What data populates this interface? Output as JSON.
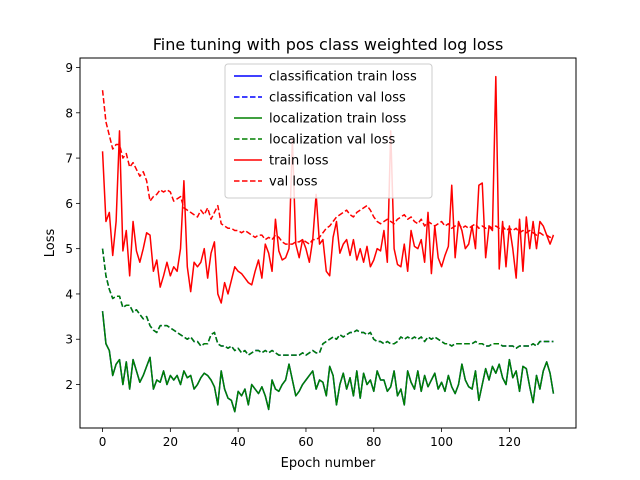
{
  "chart_data": {
    "type": "line",
    "title": "Fine tuning with pos class weighted log loss",
    "xlabel": "Epoch number",
    "ylabel": "Loss",
    "xlim": [
      -6.65,
      139.65
    ],
    "ylim": [
      1.04,
      9.21
    ],
    "xticks": [
      0,
      20,
      40,
      60,
      80,
      100,
      120
    ],
    "yticks": [
      2,
      3,
      4,
      5,
      6,
      7,
      8,
      9
    ],
    "grid": false,
    "legend_position": "upper-center",
    "x_start": 0,
    "series": [
      {
        "name": "classification train loss",
        "color": "#0000ff",
        "dash": "solid",
        "values": [
          3.62,
          2.9,
          2.75,
          2.2,
          2.45,
          2.55,
          2.0,
          2.5,
          1.9,
          2.55,
          2.3,
          2.05,
          2.2,
          2.4,
          2.6,
          1.9,
          2.1,
          2.05,
          2.3,
          2.0,
          2.2,
          2.1,
          2.2,
          2.0,
          2.3,
          2.15,
          2.2,
          1.9,
          2.0,
          2.15,
          2.25,
          2.2,
          2.1,
          1.95,
          1.55,
          2.3,
          1.9,
          1.7,
          1.65,
          1.4,
          1.85,
          1.75,
          1.9,
          1.55,
          2.0,
          1.9,
          1.8,
          1.95,
          1.75,
          1.45,
          2.1,
          1.9,
          1.85,
          2.0,
          2.1,
          2.45,
          2.1,
          1.75,
          1.85,
          2.0,
          2.1,
          2.2,
          2.3,
          1.9,
          2.1,
          2.05,
          1.75,
          2.4,
          2.2,
          1.55,
          2.0,
          2.25,
          1.9,
          2.15,
          1.75,
          2.3,
          1.7,
          2.25,
          2.0,
          2.1,
          1.85,
          2.3,
          2.1,
          2.1,
          1.85,
          1.95,
          2.3,
          1.75,
          1.9,
          1.55,
          2.3,
          2.05,
          1.9,
          2.3,
          1.85,
          2.2,
          1.95,
          2.1,
          2.25,
          1.9,
          2.05,
          1.85,
          2.2,
          1.95,
          1.8,
          2.0,
          2.45,
          2.1,
          1.95,
          1.9,
          2.3,
          1.65,
          2.0,
          2.35,
          2.1,
          2.4,
          2.25,
          2.45,
          2.15,
          2.0,
          2.55,
          2.15,
          2.3,
          1.85,
          2.4,
          2.35,
          1.95,
          1.6,
          2.2,
          1.9,
          2.3,
          2.5,
          2.25,
          1.8
        ]
      },
      {
        "name": "classification val loss",
        "color": "#0000ff",
        "dash": "dashed",
        "values": [
          5.0,
          4.4,
          4.1,
          3.9,
          3.95,
          3.95,
          3.7,
          3.75,
          3.75,
          3.6,
          3.65,
          3.55,
          3.45,
          3.5,
          3.3,
          3.2,
          3.15,
          3.3,
          3.3,
          3.3,
          3.25,
          3.2,
          3.15,
          3.1,
          3.05,
          3.0,
          3.05,
          2.95,
          2.95,
          2.85,
          2.9,
          2.9,
          3.1,
          3.15,
          2.9,
          2.85,
          2.85,
          2.8,
          2.85,
          2.75,
          2.8,
          2.7,
          2.75,
          2.65,
          2.7,
          2.75,
          2.75,
          2.7,
          2.75,
          2.7,
          2.75,
          2.7,
          2.65,
          2.65,
          2.65,
          2.65,
          2.65,
          2.65,
          2.65,
          2.7,
          2.65,
          2.7,
          2.75,
          2.7,
          2.7,
          2.9,
          2.95,
          3.0,
          3.05,
          3.0,
          3.1,
          3.05,
          3.1,
          3.15,
          3.15,
          3.2,
          3.15,
          3.15,
          3.1,
          3.15,
          3.0,
          2.95,
          2.95,
          2.9,
          2.95,
          2.9,
          2.9,
          2.95,
          3.05,
          3.0,
          3.05,
          3.0,
          3.05,
          3.0,
          3.05,
          2.95,
          3.05,
          3.0,
          3.05,
          3.0,
          2.95,
          2.9,
          2.9,
          2.85,
          2.9,
          2.9,
          2.9,
          2.9,
          2.9,
          2.9,
          2.95,
          2.9,
          2.9,
          2.85,
          2.85,
          2.9,
          2.9,
          2.9,
          2.85,
          2.85,
          2.85,
          2.85,
          2.8,
          2.85,
          2.85,
          2.85,
          2.85,
          2.9,
          2.85,
          2.95,
          2.95,
          2.95,
          2.95,
          2.95
        ]
      },
      {
        "name": "localization train loss",
        "color": "#008000",
        "dash": "solid",
        "values": [
          3.62,
          2.9,
          2.75,
          2.2,
          2.45,
          2.55,
          2.0,
          2.5,
          1.9,
          2.55,
          2.3,
          2.05,
          2.2,
          2.4,
          2.6,
          1.9,
          2.1,
          2.05,
          2.3,
          2.0,
          2.2,
          2.1,
          2.2,
          2.0,
          2.3,
          2.15,
          2.2,
          1.9,
          2.0,
          2.15,
          2.25,
          2.2,
          2.1,
          1.95,
          1.55,
          2.3,
          1.9,
          1.7,
          1.65,
          1.4,
          1.85,
          1.75,
          1.9,
          1.55,
          2.0,
          1.9,
          1.8,
          1.95,
          1.75,
          1.45,
          2.1,
          1.9,
          1.85,
          2.0,
          2.1,
          2.45,
          2.1,
          1.75,
          1.85,
          2.0,
          2.1,
          2.2,
          2.3,
          1.9,
          2.1,
          2.05,
          1.75,
          2.4,
          2.2,
          1.55,
          2.0,
          2.25,
          1.9,
          2.15,
          1.75,
          2.3,
          1.7,
          2.25,
          2.0,
          2.1,
          1.85,
          2.3,
          2.1,
          2.1,
          1.85,
          1.95,
          2.3,
          1.75,
          1.9,
          1.55,
          2.3,
          2.05,
          1.9,
          2.3,
          1.85,
          2.2,
          1.95,
          2.1,
          2.25,
          1.9,
          2.05,
          1.85,
          2.2,
          1.95,
          1.8,
          2.0,
          2.45,
          2.1,
          1.95,
          1.9,
          2.3,
          1.65,
          2.0,
          2.35,
          2.1,
          2.4,
          2.25,
          2.45,
          2.15,
          2.0,
          2.55,
          2.15,
          2.3,
          1.85,
          2.4,
          2.35,
          1.95,
          1.6,
          2.2,
          1.9,
          2.3,
          2.5,
          2.25,
          1.8
        ]
      },
      {
        "name": "localization val loss",
        "color": "#008000",
        "dash": "dashed",
        "values": [
          5.0,
          4.4,
          4.1,
          3.9,
          3.95,
          3.95,
          3.7,
          3.75,
          3.75,
          3.6,
          3.65,
          3.55,
          3.45,
          3.5,
          3.3,
          3.2,
          3.15,
          3.3,
          3.3,
          3.3,
          3.25,
          3.2,
          3.15,
          3.1,
          3.05,
          3.0,
          3.05,
          2.95,
          2.95,
          2.85,
          2.9,
          2.9,
          3.1,
          3.15,
          2.9,
          2.85,
          2.85,
          2.8,
          2.85,
          2.75,
          2.8,
          2.7,
          2.75,
          2.65,
          2.7,
          2.75,
          2.75,
          2.7,
          2.75,
          2.7,
          2.75,
          2.7,
          2.65,
          2.65,
          2.65,
          2.65,
          2.65,
          2.65,
          2.65,
          2.7,
          2.65,
          2.7,
          2.75,
          2.7,
          2.7,
          2.9,
          2.95,
          3.0,
          3.05,
          3.0,
          3.1,
          3.05,
          3.1,
          3.15,
          3.15,
          3.2,
          3.15,
          3.15,
          3.1,
          3.15,
          3.0,
          2.95,
          2.95,
          2.9,
          2.95,
          2.9,
          2.9,
          2.95,
          3.05,
          3.0,
          3.05,
          3.0,
          3.05,
          3.0,
          3.05,
          2.95,
          3.05,
          3.0,
          3.05,
          3.0,
          2.95,
          2.9,
          2.9,
          2.85,
          2.9,
          2.9,
          2.9,
          2.9,
          2.9,
          2.9,
          2.95,
          2.9,
          2.9,
          2.85,
          2.85,
          2.9,
          2.9,
          2.9,
          2.85,
          2.85,
          2.85,
          2.85,
          2.8,
          2.85,
          2.85,
          2.85,
          2.85,
          2.9,
          2.85,
          2.95,
          2.95,
          2.95,
          2.95,
          2.95
        ]
      },
      {
        "name": "train loss",
        "color": "#ff0000",
        "dash": "solid",
        "values": [
          7.15,
          5.6,
          5.8,
          4.85,
          5.6,
          7.6,
          4.95,
          5.4,
          4.4,
          5.6,
          4.95,
          4.7,
          5.0,
          5.35,
          5.3,
          4.5,
          4.75,
          4.15,
          4.4,
          4.7,
          4.4,
          4.6,
          4.5,
          5.0,
          6.5,
          4.6,
          4.05,
          4.7,
          4.6,
          4.7,
          5.0,
          4.35,
          4.9,
          5.15,
          4.0,
          3.8,
          4.25,
          4.0,
          4.3,
          4.6,
          4.5,
          4.45,
          4.35,
          4.25,
          4.2,
          4.5,
          4.75,
          4.35,
          5.1,
          4.9,
          4.5,
          5.65,
          4.95,
          4.75,
          4.8,
          5.0,
          7.4,
          5.1,
          4.8,
          5.2,
          5.0,
          4.7,
          5.2,
          6.2,
          5.1,
          5.2,
          4.5,
          4.4,
          5.25,
          5.6,
          4.9,
          5.1,
          5.2,
          4.85,
          5.2,
          4.75,
          5.0,
          4.7,
          5.05,
          4.6,
          4.75,
          5.0,
          4.95,
          5.4,
          4.7,
          7.6,
          5.0,
          4.65,
          4.6,
          5.1,
          4.5,
          5.4,
          5.05,
          5.0,
          5.2,
          4.7,
          5.8,
          4.45,
          5.5,
          4.8,
          4.6,
          4.85,
          5.05,
          6.4,
          4.8,
          5.6,
          5.4,
          5.0,
          5.1,
          5.5,
          5.0,
          6.4,
          6.45,
          4.8,
          5.5,
          5.4,
          8.8,
          4.55,
          5.6,
          4.6,
          5.5,
          5.0,
          4.35,
          5.65,
          4.5,
          5.7,
          5.0,
          5.6,
          5.0,
          5.6,
          5.5,
          5.3,
          5.1,
          5.3
        ]
      },
      {
        "name": "val loss",
        "color": "#ff0000",
        "dash": "dashed",
        "values": [
          8.5,
          7.8,
          7.5,
          7.2,
          7.3,
          7.3,
          7.0,
          7.1,
          6.8,
          6.9,
          6.75,
          6.6,
          6.7,
          6.5,
          6.05,
          6.15,
          6.2,
          6.3,
          6.25,
          6.3,
          6.25,
          6.05,
          6.1,
          6.15,
          5.9,
          5.85,
          5.8,
          5.75,
          5.7,
          5.85,
          5.75,
          5.9,
          5.65,
          5.8,
          5.95,
          5.55,
          5.5,
          5.45,
          5.45,
          5.4,
          5.4,
          5.35,
          5.4,
          5.35,
          5.3,
          5.25,
          5.3,
          5.3,
          5.2,
          5.25,
          5.2,
          5.3,
          5.25,
          5.15,
          5.1,
          5.1,
          5.1,
          5.15,
          5.15,
          5.2,
          5.15,
          5.1,
          5.2,
          5.2,
          5.25,
          5.35,
          5.45,
          5.5,
          5.6,
          5.7,
          5.75,
          5.8,
          5.85,
          5.75,
          5.7,
          5.8,
          5.85,
          5.9,
          5.95,
          5.85,
          5.7,
          5.6,
          5.55,
          5.6,
          5.65,
          5.6,
          5.55,
          5.65,
          5.7,
          5.75,
          5.65,
          5.7,
          5.6,
          5.55,
          5.65,
          5.5,
          5.6,
          5.55,
          5.5,
          5.55,
          5.6,
          5.5,
          5.55,
          5.45,
          5.5,
          5.55,
          5.45,
          5.5,
          5.45,
          5.5,
          5.55,
          5.45,
          5.5,
          5.45,
          5.5,
          5.45,
          5.5,
          5.45,
          5.5,
          5.4,
          5.45,
          5.4,
          5.45,
          5.35,
          5.4,
          5.35,
          5.4,
          5.35,
          5.3,
          5.35,
          5.3,
          5.3,
          5.25,
          5.3
        ]
      }
    ]
  }
}
